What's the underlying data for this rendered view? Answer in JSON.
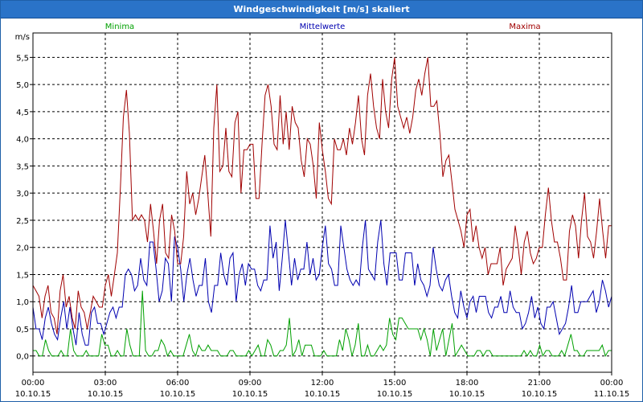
{
  "window": {
    "title": "Windgeschwindigkeit [m/s] skaliert"
  },
  "colors": {
    "minima": "#00a000",
    "mittel": "#0000b0",
    "maxima": "#a00000",
    "grid": "#000000",
    "titlebar": "#2a73c8"
  },
  "chart_data": {
    "type": "line",
    "title": "Windgeschwindigkeit [m/s] skaliert",
    "ylabel": "m/s",
    "ylim": [
      -0.3,
      5.95
    ],
    "yticks": [
      "0,0",
      "0,5",
      "1,0",
      "1,5",
      "2,0",
      "2,5",
      "3,0",
      "3,5",
      "4,0",
      "4,5",
      "5,0",
      "5,5"
    ],
    "xticks": [
      {
        "time": "00:00",
        "date": "10.10.15"
      },
      {
        "time": "03:00",
        "date": "10.10.15"
      },
      {
        "time": "06:00",
        "date": "10.10.15"
      },
      {
        "time": "09:00",
        "date": "10.10.15"
      },
      {
        "time": "12:00",
        "date": "10.10.15"
      },
      {
        "time": "15:00",
        "date": "10.10.15"
      },
      {
        "time": "18:00",
        "date": "10.10.15"
      },
      {
        "time": "21:00",
        "date": "10.10.15"
      },
      {
        "time": "00:00",
        "date": "11.10.15"
      }
    ],
    "xlim_hours": [
      0,
      24
    ],
    "series": [
      {
        "name": "Minima",
        "key": "minima",
        "values": [
          0.1,
          0.1,
          0.0,
          0.0,
          0.3,
          0.1,
          0.0,
          0.0,
          0.0,
          0.1,
          0.0,
          0.0,
          0.5,
          0.1,
          0.0,
          0.0,
          0.0,
          0.1,
          0.0,
          0.0,
          0.0,
          0.0,
          0.4,
          0.2,
          0.2,
          0.0,
          0.0,
          0.1,
          0.0,
          0.0,
          0.5,
          0.2,
          0.0,
          0.0,
          0.0,
          1.2,
          0.1,
          0.0,
          0.0,
          0.1,
          0.1,
          0.3,
          0.2,
          0.0,
          0.1,
          0.0,
          0.0,
          0.0,
          0.0,
          0.2,
          0.4,
          0.1,
          0.0,
          0.2,
          0.1,
          0.1,
          0.2,
          0.1,
          0.1,
          0.1,
          0.0,
          0.0,
          0.0,
          0.1,
          0.1,
          0.0,
          0.0,
          0.0,
          0.0,
          0.1,
          0.0,
          0.1,
          0.2,
          0.0,
          0.0,
          0.3,
          0.2,
          0.0,
          0.0,
          0.1,
          0.1,
          0.2,
          0.7,
          0.0,
          0.1,
          0.3,
          0.0,
          0.2,
          0.2,
          0.2,
          0.0,
          0.0,
          0.0,
          0.1,
          0.0,
          0.0,
          0.0,
          0.0,
          0.3,
          0.1,
          0.5,
          0.3,
          0.0,
          0.2,
          0.6,
          0.0,
          0.0,
          0.2,
          0.0,
          0.0,
          0.1,
          0.2,
          0.1,
          0.2,
          0.7,
          0.4,
          0.3,
          0.7,
          0.7,
          0.6,
          0.5,
          0.5,
          0.5,
          0.5,
          0.3,
          0.5,
          0.3,
          0.0,
          0.5,
          0.1,
          0.3,
          0.5,
          0.0,
          0.3,
          0.6,
          0.0,
          0.1,
          0.2,
          0.1,
          0.0,
          0.0,
          0.0,
          0.1,
          0.1,
          0.0,
          0.1,
          0.1,
          0.0,
          0.0,
          0.0,
          0.0,
          0.0,
          0.0,
          0.0,
          0.0,
          0.0,
          0.0,
          0.1,
          0.0,
          0.1,
          0.0,
          0.0,
          0.2,
          0.0,
          0.1,
          0.1,
          0.0,
          0.0,
          0.0,
          0.1,
          0.0,
          0.2,
          0.4,
          0.1,
          0.1,
          0.0,
          0.0,
          0.1,
          0.1,
          0.1,
          0.1,
          0.1,
          0.2,
          0.0,
          0.1,
          0.1
        ]
      },
      {
        "name": "Mittelwerte",
        "key": "mittel",
        "values": [
          0.9,
          0.5,
          0.5,
          0.3,
          0.7,
          0.9,
          0.6,
          0.4,
          0.3,
          0.7,
          1.0,
          0.5,
          0.9,
          0.5,
          0.2,
          0.8,
          0.4,
          0.2,
          0.2,
          0.8,
          0.9,
          0.6,
          0.6,
          0.4,
          0.6,
          0.8,
          0.9,
          0.7,
          0.9,
          0.9,
          1.5,
          1.6,
          1.5,
          1.2,
          1.3,
          1.8,
          1.4,
          1.3,
          2.1,
          2.1,
          1.6,
          1.0,
          1.2,
          1.8,
          1.7,
          1.0,
          2.2,
          2.0,
          1.6,
          1.0,
          1.5,
          1.8,
          1.4,
          1.1,
          1.3,
          1.3,
          1.8,
          1.0,
          0.8,
          1.3,
          1.3,
          1.9,
          1.5,
          1.3,
          1.8,
          1.9,
          1.0,
          1.5,
          1.7,
          1.3,
          1.7,
          1.6,
          1.6,
          1.3,
          1.2,
          1.4,
          1.4,
          2.4,
          1.8,
          2.1,
          1.2,
          1.8,
          2.5,
          1.9,
          1.3,
          1.8,
          1.4,
          1.6,
          1.6,
          2.1,
          1.5,
          1.8,
          1.4,
          1.5,
          2.0,
          2.4,
          1.7,
          1.6,
          1.3,
          1.3,
          2.4,
          2.0,
          1.6,
          1.4,
          1.3,
          1.4,
          1.3,
          2.0,
          2.5,
          1.6,
          1.5,
          1.4,
          2.1,
          2.5,
          1.7,
          1.3,
          1.9,
          1.9,
          1.9,
          1.4,
          1.4,
          1.9,
          1.9,
          1.9,
          1.3,
          1.7,
          1.4,
          1.3,
          1.1,
          1.3,
          2.0,
          1.6,
          1.3,
          1.2,
          1.4,
          1.5,
          1.1,
          0.8,
          0.7,
          1.2,
          0.9,
          0.7,
          1.0,
          1.1,
          0.8,
          1.1,
          1.1,
          1.1,
          0.8,
          0.7,
          0.9,
          0.9,
          1.1,
          0.8,
          0.8,
          1.2,
          0.9,
          0.8,
          0.8,
          0.5,
          0.6,
          0.8,
          1.1,
          0.7,
          0.9,
          0.6,
          0.5,
          0.9,
          0.9,
          1.0,
          0.7,
          0.4,
          0.5,
          0.6,
          0.9,
          1.3,
          0.8,
          0.8,
          1.0,
          1.0,
          1.0,
          1.1,
          1.2,
          0.8,
          1.0,
          1.4,
          1.2,
          0.9,
          1.1
        ]
      },
      {
        "name": "Maxima",
        "key": "maxima",
        "values": [
          1.3,
          1.2,
          1.1,
          0.7,
          1.1,
          1.3,
          0.8,
          0.7,
          0.4,
          1.2,
          1.5,
          0.9,
          1.1,
          0.7,
          0.5,
          1.2,
          0.9,
          0.8,
          0.5,
          0.8,
          1.1,
          1.0,
          0.9,
          0.9,
          1.3,
          1.5,
          1.1,
          1.5,
          1.9,
          3.1,
          4.4,
          4.9,
          4.1,
          2.5,
          2.6,
          2.5,
          2.6,
          2.5,
          2.1,
          2.8,
          2.3,
          1.7,
          2.5,
          2.8,
          1.9,
          1.8,
          2.6,
          2.3,
          1.7,
          1.7,
          2.2,
          3.4,
          2.8,
          3.0,
          2.6,
          2.9,
          3.3,
          3.7,
          3.0,
          2.2,
          4.2,
          5.0,
          3.4,
          3.5,
          4.2,
          3.4,
          3.3,
          4.3,
          4.5,
          3.0,
          3.8,
          3.8,
          3.9,
          3.9,
          2.9,
          2.9,
          3.9,
          4.8,
          5.0,
          4.6,
          3.9,
          3.8,
          4.8,
          3.9,
          4.5,
          3.8,
          4.6,
          4.3,
          4.2,
          3.6,
          3.3,
          4.0,
          3.9,
          3.5,
          2.9,
          4.3,
          3.8,
          3.4,
          2.9,
          2.8,
          4.0,
          3.8,
          3.8,
          4.0,
          3.7,
          4.2,
          3.9,
          4.3,
          4.8,
          4.0,
          3.7,
          4.8,
          5.2,
          4.6,
          4.2,
          4.0,
          5.1,
          4.5,
          4.2,
          5.1,
          5.5,
          4.6,
          4.4,
          4.2,
          4.4,
          4.1,
          4.4,
          4.9,
          5.1,
          4.8,
          5.2,
          5.5,
          4.6,
          4.6,
          4.7,
          4.1,
          3.3,
          3.6,
          3.7,
          3.2,
          2.7,
          2.5,
          2.3,
          2.0,
          2.6,
          2.7,
          2.1,
          2.4,
          2.0,
          1.8,
          2.0,
          1.5,
          1.7,
          1.7,
          1.7,
          2.0,
          1.3,
          1.6,
          1.7,
          1.8,
          2.4,
          2.0,
          1.5,
          2.1,
          2.3,
          1.9,
          1.7,
          1.8,
          2.0,
          2.0,
          2.6,
          3.1,
          2.5,
          2.1,
          2.1,
          1.8,
          1.4,
          1.4,
          2.3,
          2.6,
          2.4,
          1.8,
          2.5,
          3.0,
          2.2,
          2.1,
          1.8,
          2.3,
          2.9,
          2.3,
          1.8,
          2.4,
          2.4
        ]
      }
    ]
  }
}
